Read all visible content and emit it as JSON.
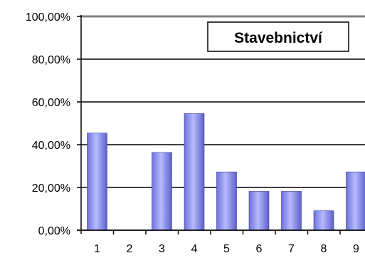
{
  "chart_data": {
    "type": "bar",
    "title": "Stavebnictví",
    "categories": [
      "1",
      "2",
      "3",
      "4",
      "5",
      "6",
      "7",
      "8",
      "9"
    ],
    "values": [
      45.45,
      0,
      36.36,
      54.55,
      27.27,
      18.18,
      18.18,
      9.09,
      27.27
    ],
    "y_ticks": [
      "0,00%",
      "20,00%",
      "40,00%",
      "60,00%",
      "80,00%",
      "100,00%"
    ],
    "ylim": [
      0,
      100
    ],
    "grid": true,
    "legend": "none",
    "colors": {
      "bar_light": "#b4b8ff",
      "bar_mid": "#8a8ff0",
      "bar_dark": "#5a5fc8",
      "grid": "#000000",
      "top_line": "#808080"
    }
  }
}
